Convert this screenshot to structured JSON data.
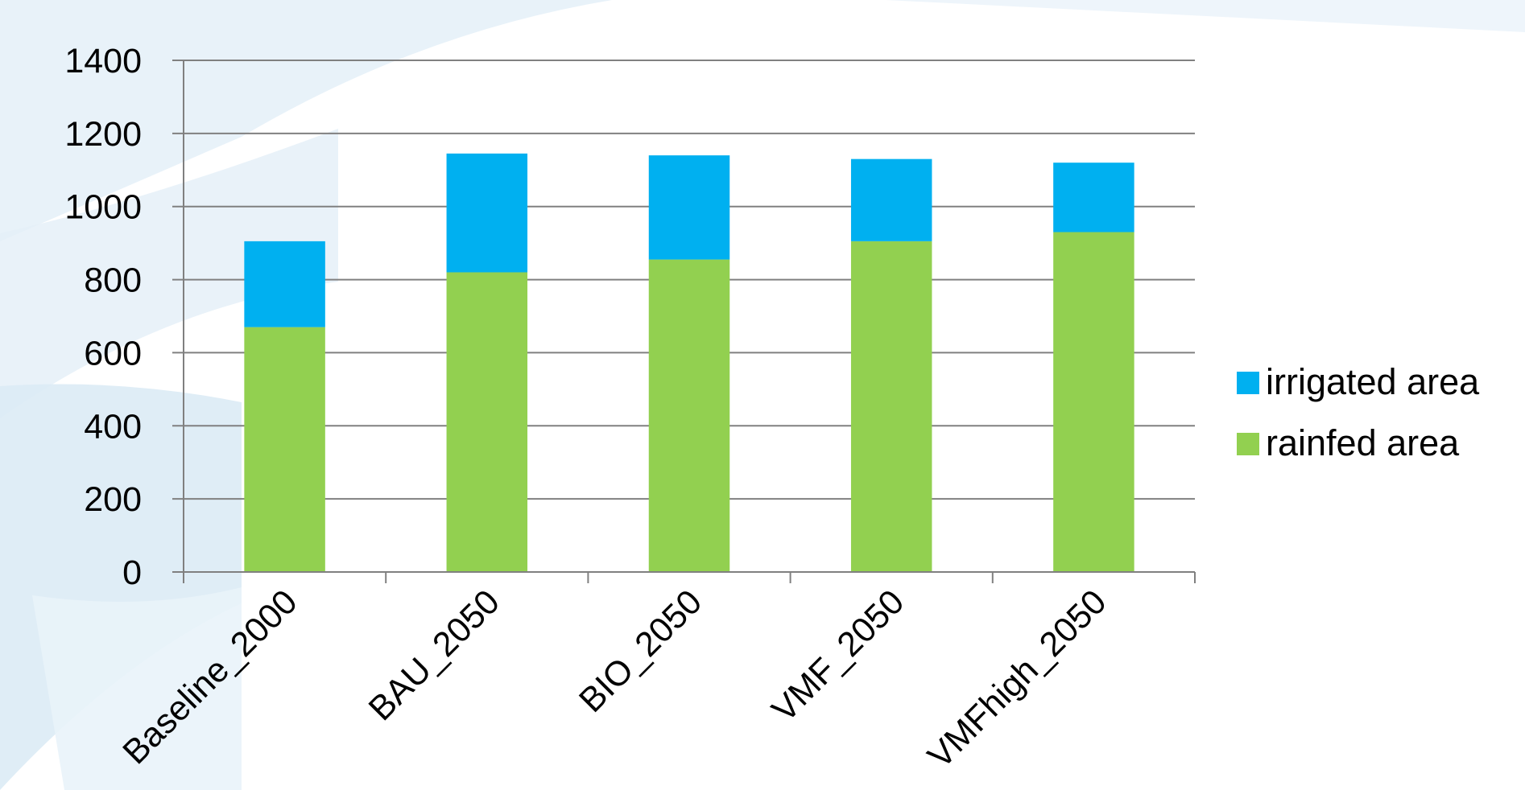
{
  "colors": {
    "irrigated": "#00B0F0",
    "rainfed": "#92D050",
    "gridline": "#808080",
    "axis": "#808080",
    "background_decor": "#dcebf5"
  },
  "chart_data": {
    "type": "bar",
    "stacked": true,
    "title": "",
    "xlabel": "",
    "ylabel": "",
    "categories": [
      "Baseline_2000",
      "BAU_2050",
      "BIO_2050",
      "VMF_2050",
      "VMFhigh_2050"
    ],
    "series": [
      {
        "name": "rainfed area",
        "color": "#92D050",
        "values": [
          670,
          820,
          855,
          905,
          930
        ]
      },
      {
        "name": "irrigated area",
        "color": "#00B0F0",
        "values": [
          235,
          325,
          285,
          225,
          190
        ]
      }
    ],
    "ylim": [
      0,
      1400
    ],
    "yticks": [
      "0",
      "200",
      "400",
      "600",
      "800",
      "1000",
      "1200",
      "1400"
    ],
    "grid": true,
    "legend": {
      "position": "right",
      "entries": [
        "irrigated area",
        "rainfed area"
      ]
    }
  }
}
